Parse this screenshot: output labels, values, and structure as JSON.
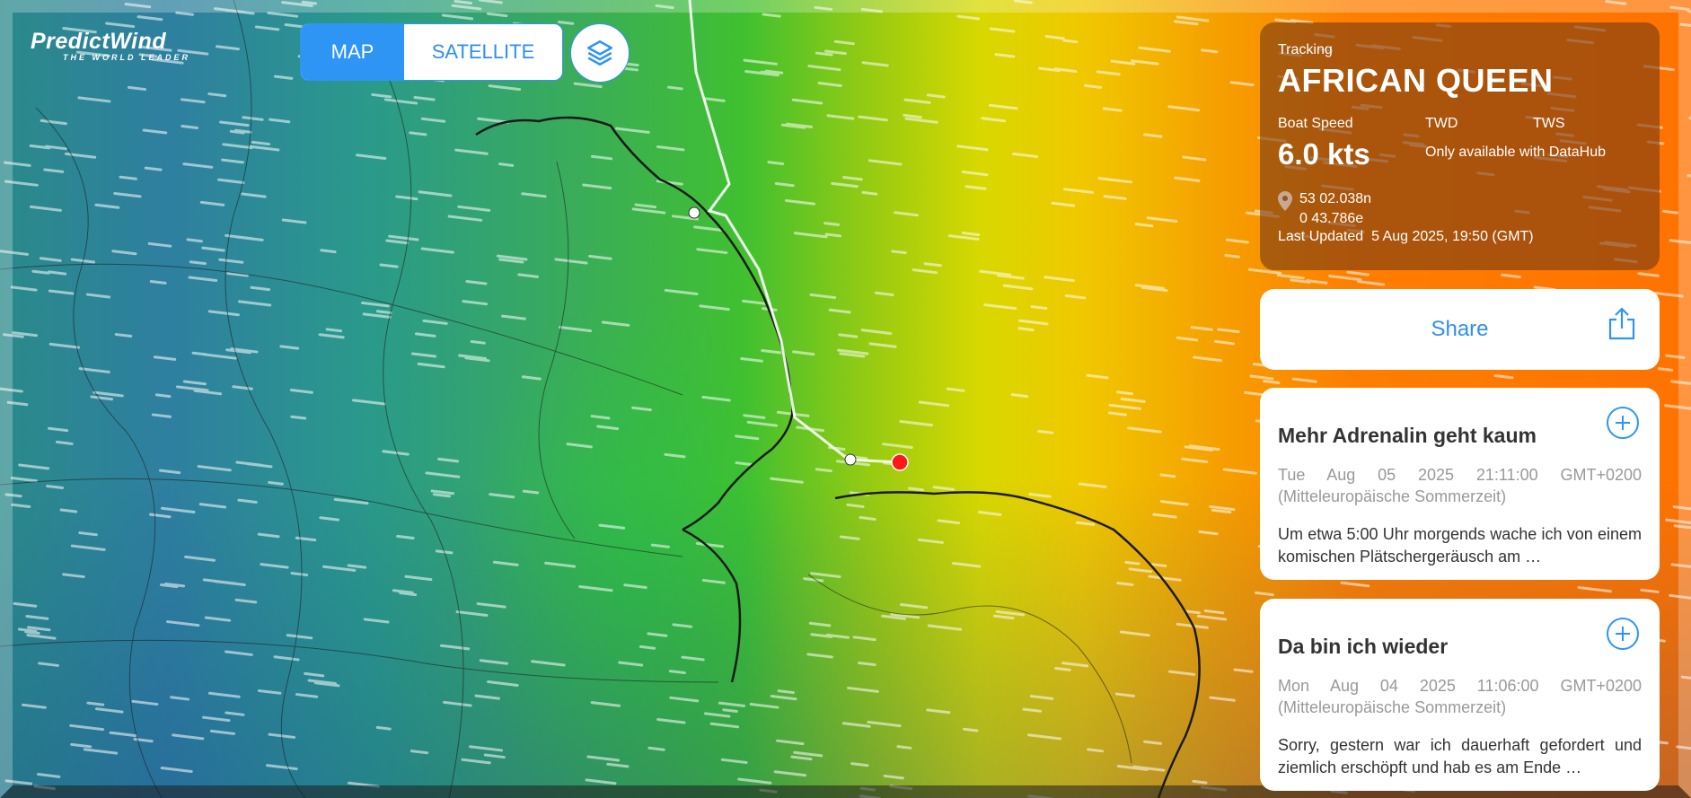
{
  "brand": {
    "name": "PredictWind",
    "tagline": "THE WORLD LEADER"
  },
  "map_toggle": {
    "map": "MAP",
    "satellite": "SATELLITE",
    "active": "MAP"
  },
  "layers_icon": "layers-icon",
  "tracking": {
    "label": "Tracking",
    "boat": "AFRICAN QUEEN",
    "boat_speed_label": "Boat Speed",
    "boat_speed": "6.0 kts",
    "twd_label": "TWD",
    "tws_label": "TWS",
    "datahub_note": "Only available with DataHub",
    "lat": "53 02.038n",
    "lon": "0 43.786e",
    "last_updated_label": "Last Updated",
    "last_updated": "5 Aug 2025, 19:50 (GMT)"
  },
  "share": {
    "label": "Share"
  },
  "posts": [
    {
      "title": "Mehr Adrenalin geht kaum",
      "date": "Tue Aug 05 2025 21:11:00 GMT+0200 (Mitteleuropäische Sommerzeit)",
      "excerpt": "Um etwa 5:00 Uhr morgends wache ich von einem komischen Plätschergeräusch am …"
    },
    {
      "title": "Da bin ich wieder",
      "date": "Mon Aug 04 2025 11:06:00 GMT+0200 (Mitteleuropäische Sommerzeit)",
      "excerpt": "Sorry, gestern war ich dauerhaft gefordert und ziemlich erschöpft und hab es am Ende …"
    }
  ],
  "colors": {
    "accent": "#2e95f5",
    "boat_marker": "#ff1a1a",
    "track": "#ffffff"
  }
}
